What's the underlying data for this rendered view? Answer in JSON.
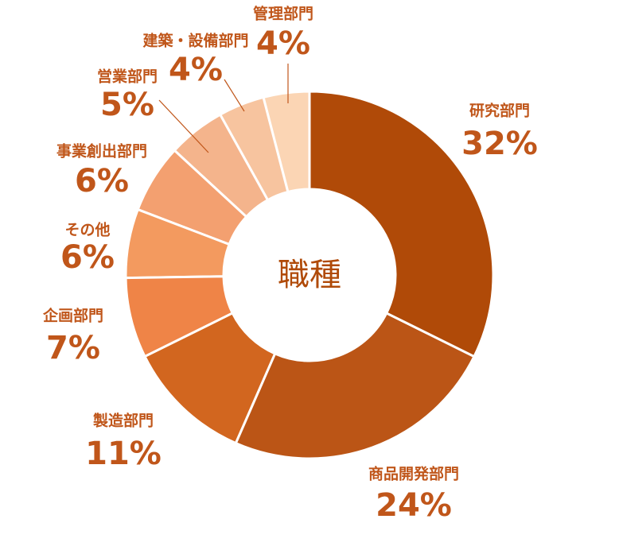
{
  "chart_data": {
    "type": "donut",
    "center_label": "職種",
    "categories": [
      "研究部門",
      "商品開発部門",
      "製造部門",
      "企画部門",
      "その他",
      "事業創出部門",
      "営業部門",
      "建築・設備部門",
      "管理部門"
    ],
    "values": [
      32,
      24,
      11,
      7,
      6,
      6,
      5,
      4,
      4
    ],
    "value_labels": [
      "32%",
      "24%",
      "11%",
      "7%",
      "6%",
      "6%",
      "5%",
      "4%",
      "4%"
    ],
    "colors": [
      "#b04a08",
      "#bb5516",
      "#d2661f",
      "#ef8447",
      "#f39a5f",
      "#f3a070",
      "#f4b48c",
      "#f7c49f",
      "#fbd5b4"
    ]
  }
}
